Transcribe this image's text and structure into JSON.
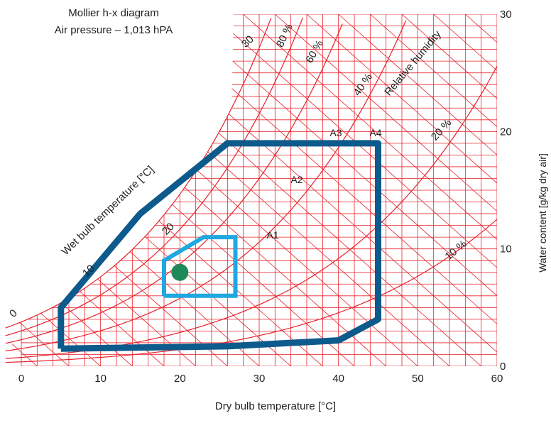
{
  "chart_data": {
    "type": "psychrometric",
    "title": "Mollier h-x diagram",
    "subtitle": "Air pressure – 1,013 hPA",
    "xlabel": "Dry bulb temperature [°C]",
    "ylabel": "Water content [g/kg dry air]",
    "xlim": [
      0,
      60
    ],
    "ylim": [
      0,
      30
    ],
    "x_ticks": [
      0,
      10,
      20,
      30,
      40,
      50,
      60
    ],
    "y_ticks": [
      0,
      10,
      20,
      30
    ],
    "wet_bulb_label": "Wet bulb temperature [°C]",
    "wet_bulb_ticks": [
      "0",
      "10",
      "20",
      "30"
    ],
    "rh_label": "Relative humidity",
    "rh_curves": [
      {
        "label": "10 %"
      },
      {
        "label": "20 %"
      },
      {
        "label": "40 %"
      },
      {
        "label": "60 %"
      },
      {
        "label": "80 %"
      }
    ],
    "region_labels": [
      "A1",
      "A2",
      "A3",
      "A4"
    ],
    "colors": {
      "grid": "#e8202a",
      "envelope_outer": "#0d5a8c",
      "envelope_inner": "#1fa8e0",
      "point": "#1e8a5a"
    },
    "envelope_outer": [
      [
        5,
        1.5
      ],
      [
        5,
        5
      ],
      [
        15,
        13
      ],
      [
        26,
        19
      ],
      [
        45,
        19
      ],
      [
        45,
        4
      ],
      [
        40,
        2.2
      ],
      [
        26,
        1.7
      ],
      [
        5,
        1.5
      ]
    ],
    "envelope_inner": [
      [
        18,
        6
      ],
      [
        18,
        9
      ],
      [
        23,
        11
      ],
      [
        27,
        11
      ],
      [
        27,
        6
      ],
      [
        18,
        6
      ]
    ],
    "point": {
      "x": 20,
      "y": 8
    }
  }
}
